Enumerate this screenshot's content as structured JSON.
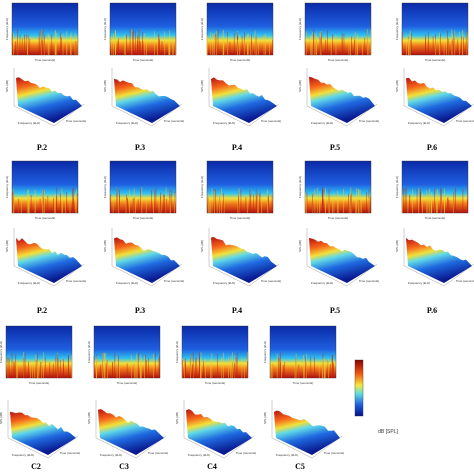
{
  "panels": {
    "row1": [
      "P.2",
      "P.3",
      "P.4",
      "P.5",
      "P.6"
    ],
    "row2": [
      "P.2",
      "P.3",
      "P.4",
      "P.5",
      "P.6"
    ],
    "row3": [
      "C2",
      "C3",
      "C4",
      "C5"
    ]
  },
  "axis_labels": {
    "time": "Time (seconds)",
    "frequency": "Frequency (kHz)",
    "spl": "SPL (dB)"
  },
  "colorbar": {
    "label": "dB [SPL]"
  }
}
